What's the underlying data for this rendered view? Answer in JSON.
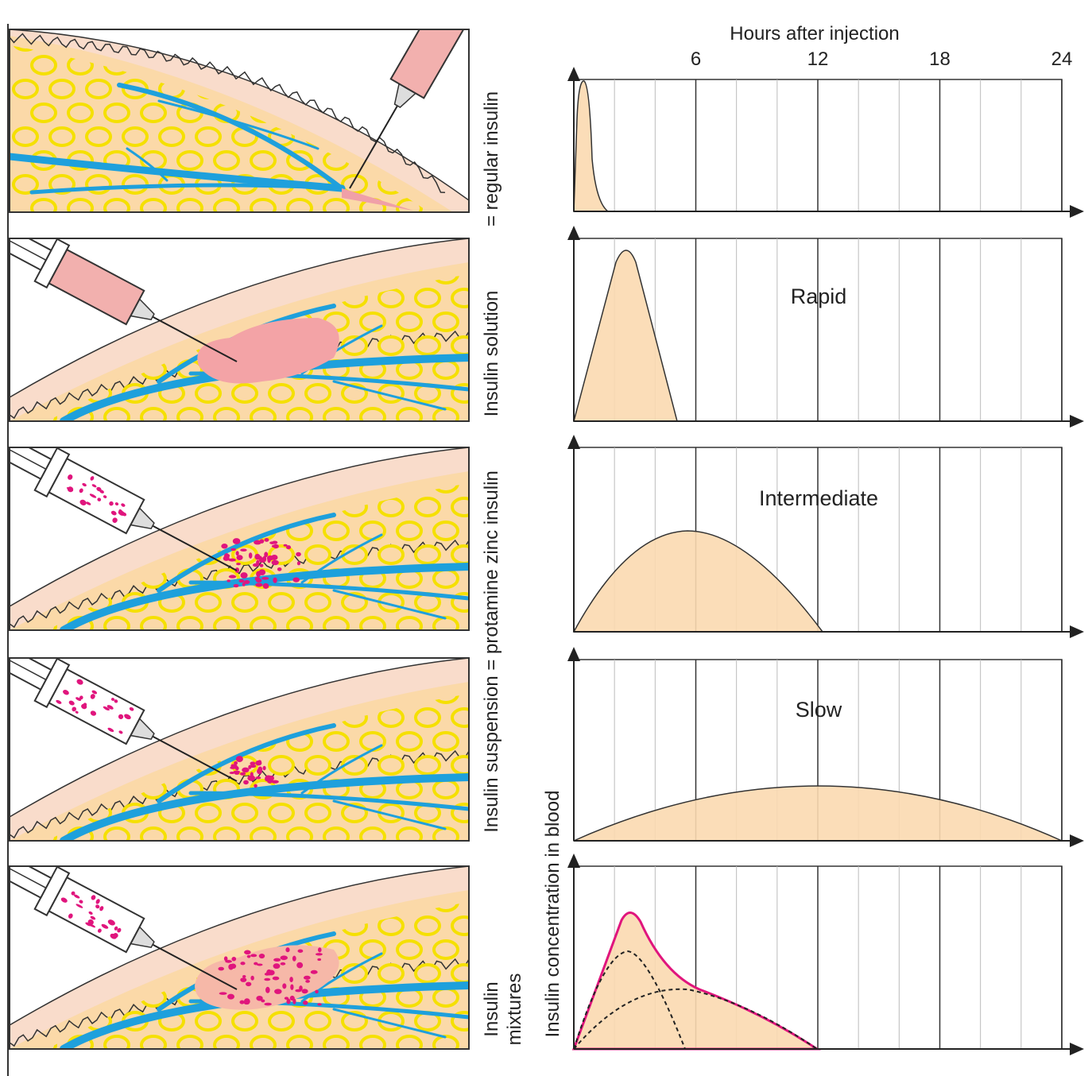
{
  "header": {
    "x_axis_title": "Hours after injection",
    "x_ticks": [
      6,
      12,
      18,
      24
    ],
    "y_axis_title": "Insulin concentration in blood"
  },
  "side_labels": {
    "regular": "= regular insulin",
    "solution": "Insulin solution",
    "suspension": "Insulin suspension = protamine zinc insulin",
    "mixtures": [
      "Insulin",
      "mixtures"
    ]
  },
  "curve_labels": [
    "Rapid",
    "Intermediate",
    "Slow"
  ]
}
